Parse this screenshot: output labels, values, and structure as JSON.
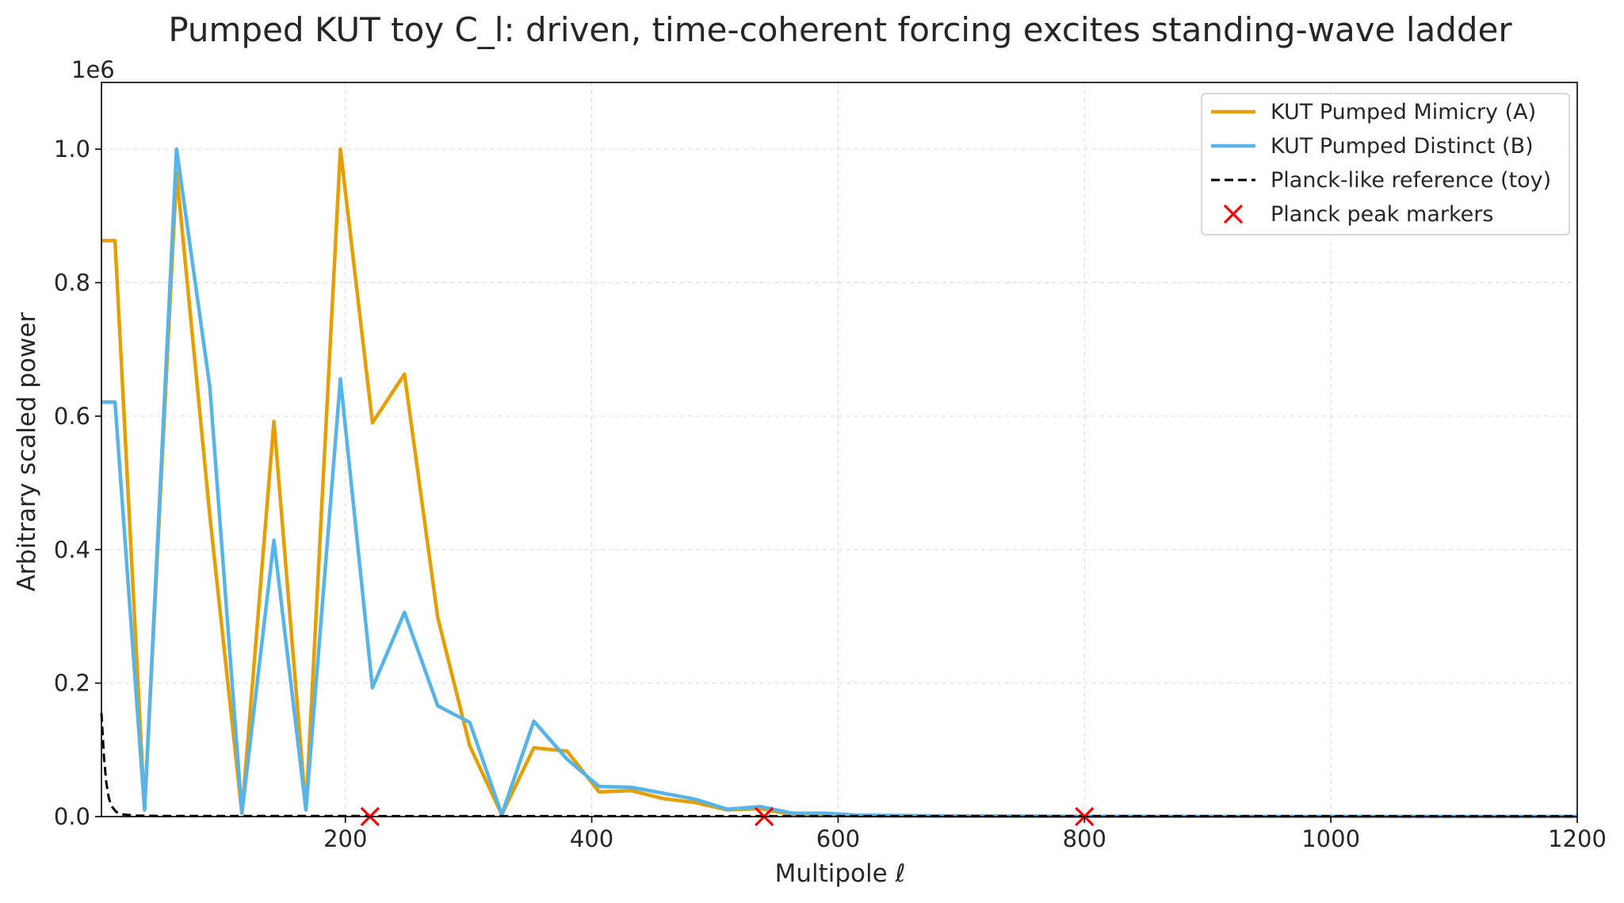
{
  "chart_data": {
    "type": "line",
    "title": "Pumped KUT toy C_l: driven, time-coherent forcing excites standing-wave ladder",
    "xlabel": "Multipole ℓ",
    "ylabel": "Arbitrary scaled power",
    "y_offset_label": "1e6",
    "xlim": [
      2,
      1200
    ],
    "ylim": [
      0,
      1100000
    ],
    "x_ticks": [
      200,
      400,
      600,
      800,
      1000,
      1200
    ],
    "x_tick_labels": [
      "200",
      "400",
      "600",
      "800",
      "1000",
      "1200"
    ],
    "y_ticks": [
      0,
      200000,
      400000,
      600000,
      800000,
      1000000
    ],
    "y_tick_labels": [
      "0.0",
      "0.2",
      "0.4",
      "0.6",
      "0.8",
      "1.0"
    ],
    "grid": true,
    "legend_position": "top-right",
    "series": [
      {
        "name": "KUT Pumped Mimicry (A)",
        "color": "#E69F00",
        "style": "solid",
        "x": [
          2,
          13,
          37,
          63,
          90,
          116,
          142,
          168,
          196,
          222,
          248,
          275,
          301,
          327,
          353,
          380,
          406,
          432,
          458,
          484,
          510,
          537,
          563,
          590,
          616,
          700,
          800,
          900,
          1000,
          1100,
          1200
        ],
        "y": [
          863000,
          863000,
          10000,
          965000,
          450000,
          5000,
          592000,
          10000,
          1000000,
          590000,
          663000,
          298000,
          106000,
          3000,
          103000,
          98000,
          37000,
          39000,
          27000,
          21000,
          10000,
          12000,
          3000,
          2500,
          1200,
          600,
          300,
          200,
          150,
          100,
          80
        ]
      },
      {
        "name": "KUT Pumped Distinct (B)",
        "color": "#56B4E9",
        "style": "solid",
        "x": [
          2,
          13,
          37,
          63,
          90,
          116,
          142,
          168,
          196,
          222,
          248,
          275,
          301,
          327,
          353,
          380,
          406,
          432,
          458,
          484,
          510,
          537,
          563,
          590,
          616,
          700,
          800,
          900,
          1000,
          1100,
          1200
        ],
        "y": [
          621000,
          621000,
          10000,
          1000000,
          643000,
          5000,
          414000,
          10000,
          656000,
          193000,
          306000,
          166000,
          141000,
          3000,
          143000,
          86000,
          45000,
          44000,
          35000,
          26000,
          11000,
          15000,
          5000,
          5000,
          2000,
          1000,
          500,
          300,
          200,
          150,
          100
        ]
      },
      {
        "name": "Planck-like reference (toy)",
        "color": "#000000",
        "style": "dashed",
        "x": [
          2,
          4,
          6,
          8,
          10,
          14,
          20,
          30,
          50,
          100,
          200,
          400,
          800,
          1200
        ],
        "y": [
          155000,
          90000,
          50000,
          28000,
          16000,
          7000,
          3000,
          1500,
          1000,
          900,
          800,
          700,
          600,
          500
        ]
      }
    ],
    "markers": {
      "name": "Planck peak markers",
      "color": "#FF0000",
      "symbol": "x",
      "x": [
        220,
        540,
        800
      ],
      "y": [
        0,
        0,
        0
      ]
    }
  }
}
